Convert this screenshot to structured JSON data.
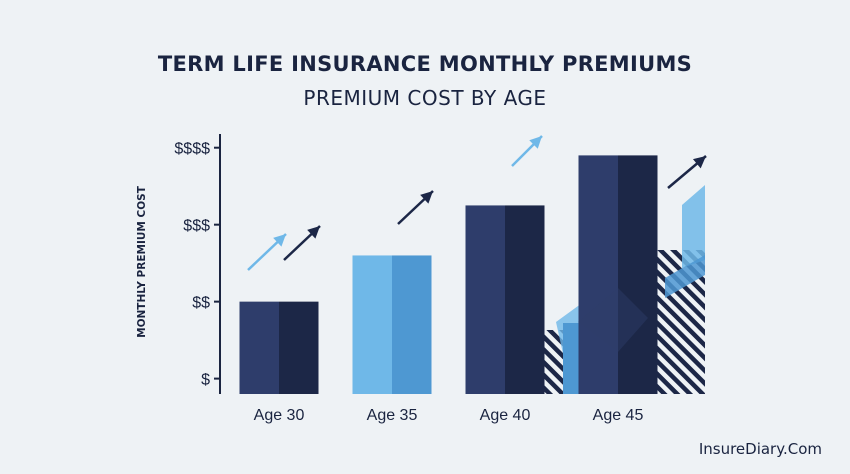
{
  "chart_data": {
    "type": "bar",
    "title": "TERM LIFE INSURANCE MONTHLY PREMIUMS",
    "subtitle": "PREMIUM COST BY AGE",
    "xlabel": "",
    "ylabel": "MONTHLY PREMIUM COST",
    "categories": [
      "Age 30",
      "Age 35",
      "Age 40",
      "Age 45"
    ],
    "values": [
      1.2,
      1.8,
      2.45,
      3.1
    ],
    "y_ticks": [
      {
        "label": "$",
        "value": 0.2
      },
      {
        "label": "$$",
        "value": 1.2
      },
      {
        "label": "$$$",
        "value": 2.2
      },
      {
        "label": "$$$$",
        "value": 3.2
      }
    ],
    "ylim": [
      0,
      3.3
    ],
    "grid": false,
    "colors": {
      "bars": [
        "#2e3d6b",
        "#6fb8e8",
        "#2e3d6b",
        "#2e3d6b"
      ],
      "bars_dark": [
        "#1c2747",
        "#4e98d2",
        "#1c2747",
        "#1c2747"
      ],
      "axis": "#1a2440",
      "arrow_light": "#6fb8e8",
      "arrow_dark": "#1c2747"
    }
  },
  "watermark": "InsureDiary.Com"
}
